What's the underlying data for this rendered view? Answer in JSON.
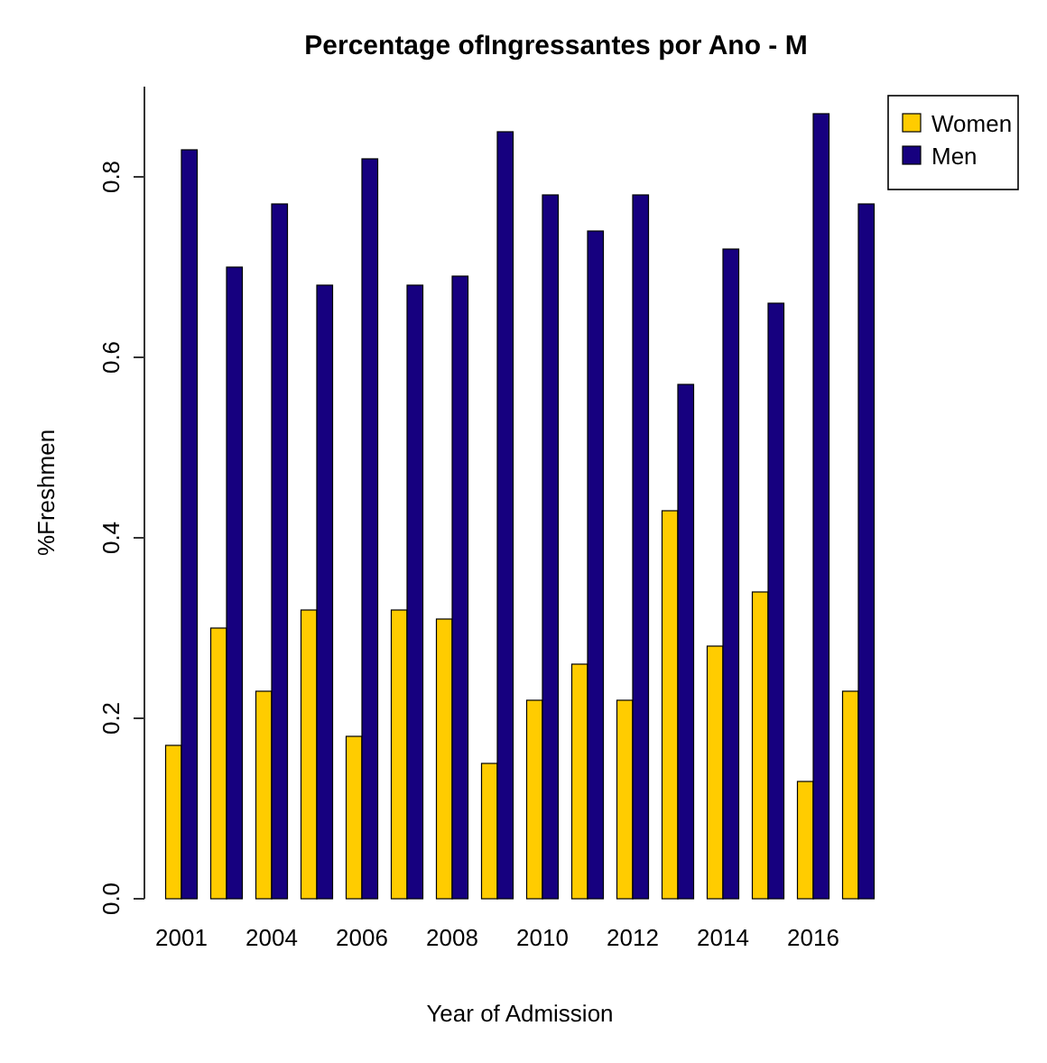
{
  "chart_data": {
    "type": "bar",
    "title": "Percentage ofIngressantes por Ano - M",
    "xlabel": "Year of Admission",
    "ylabel": "%Freshmen",
    "categories": [
      "2001",
      null,
      "2004",
      null,
      "2006",
      null,
      "2008",
      null,
      "2010",
      null,
      "2012",
      null,
      "2014",
      null,
      "2016",
      null
    ],
    "series": [
      {
        "name": "Women",
        "color": "#ffcc00",
        "values": [
          0.17,
          0.3,
          0.23,
          0.32,
          0.18,
          0.32,
          0.31,
          0.15,
          0.22,
          0.26,
          0.22,
          0.43,
          0.28,
          0.34,
          0.13,
          0.23
        ]
      },
      {
        "name": "Men",
        "color": "#16007f",
        "values": [
          0.83,
          0.7,
          0.77,
          0.68,
          0.82,
          0.68,
          0.69,
          0.85,
          0.78,
          0.74,
          0.78,
          0.57,
          0.72,
          0.66,
          0.87,
          0.77
        ]
      }
    ],
    "ylim": [
      0,
      0.9
    ],
    "yticks": [
      {
        "value": 0,
        "label": "0.0"
      },
      {
        "value": 0.2,
        "label": "0.2"
      },
      {
        "value": 0.4,
        "label": "0.4"
      },
      {
        "value": 0.6,
        "label": "0.6"
      },
      {
        "value": 0.8,
        "label": "0.8"
      }
    ],
    "grid": false,
    "legend": "top right"
  }
}
